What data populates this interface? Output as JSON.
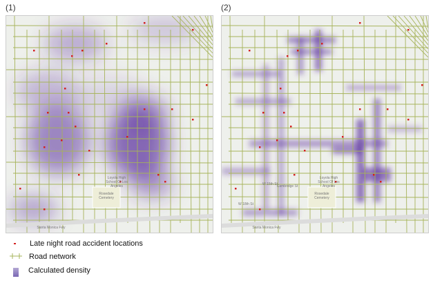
{
  "panels": [
    {
      "label": "(1)",
      "type": "kernel-density-smooth"
    },
    {
      "label": "(2)",
      "type": "network-density"
    }
  ],
  "map_labels": {
    "cemetery": "Rosedale Cemetery",
    "school": "Loyola High School Of Los Angeles",
    "freeway": "Santa Monica Fwy",
    "street1": "Cambridge St",
    "street2": "W 15th St",
    "street3": "W 18th St"
  },
  "legend": {
    "accidents": "Late night road accident locations",
    "roads": "Road network",
    "density": "Calculated density"
  },
  "colors": {
    "accident": "#d42020",
    "road": "#a6b35a",
    "density": "#5a2f9e",
    "background": "#eef0ec"
  }
}
